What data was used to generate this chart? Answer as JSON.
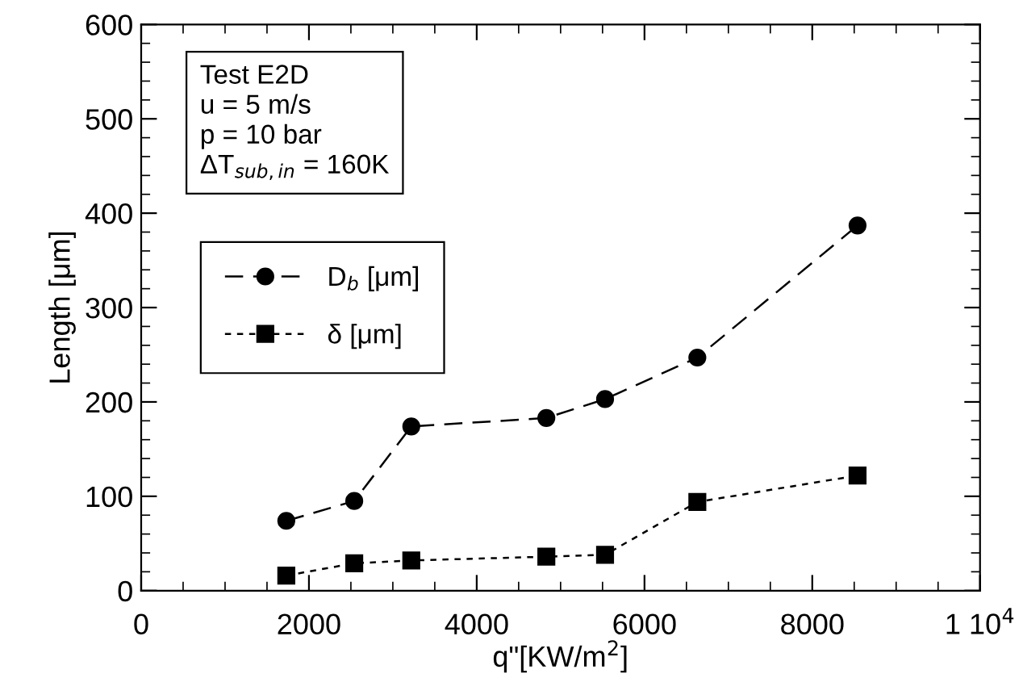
{
  "chart_data": {
    "type": "line",
    "xlabel": "q\"[KW/m$^{2}$]",
    "ylabel": "Length [μm]",
    "x": [
      1730,
      2540,
      3220,
      4830,
      5530,
      6630,
      8540
    ],
    "series": [
      {
        "name": "D$_{b}$ [μm]",
        "color": "#000000",
        "marker": "circle",
        "line_style": "dashed",
        "values": [
          74,
          95,
          174,
          183,
          203,
          247,
          387
        ]
      },
      {
        "name": "δ [μm]",
        "color": "#000000",
        "marker": "square",
        "line_style": "dotted",
        "values": [
          16,
          29,
          32,
          36,
          38,
          94,
          122
        ]
      }
    ],
    "xlim": [
      0,
      10000
    ],
    "xticks": [
      0,
      2000,
      4000,
      6000,
      8000,
      {
        "value": 10000,
        "label": "1 10$^{4}$"
      }
    ],
    "ylim": [
      0,
      600
    ],
    "yticks": [
      0,
      100,
      200,
      300,
      400,
      500,
      600
    ],
    "annotations": [
      "Test E2D\nu = 5 m/s\np = 10 bar\nΔT$_{sub,in}$ = 160K"
    ],
    "legend": "left",
    "grid": false
  }
}
